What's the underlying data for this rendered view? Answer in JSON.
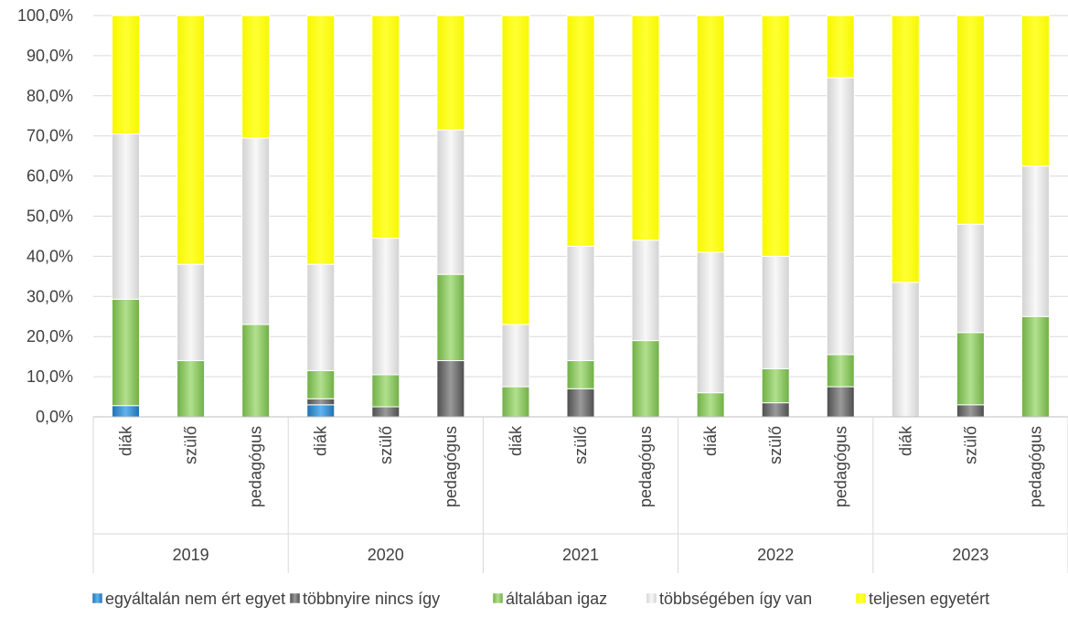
{
  "chart_data": {
    "type": "bar",
    "stacked": true,
    "percent": true,
    "ylim": [
      0,
      100
    ],
    "y_ticks": [
      "0,0%",
      "10,0%",
      "20,0%",
      "30,0%",
      "40,0%",
      "50,0%",
      "60,0%",
      "70,0%",
      "80,0%",
      "90,0%",
      "100,0%"
    ],
    "groups": [
      "2019",
      "2020",
      "2021",
      "2022",
      "2023"
    ],
    "categories": [
      {
        "group": "2019",
        "label": "diák"
      },
      {
        "group": "2019",
        "label": "szülő"
      },
      {
        "group": "2019",
        "label": "pedagógus"
      },
      {
        "group": "2020",
        "label": "diák"
      },
      {
        "group": "2020",
        "label": "szülő"
      },
      {
        "group": "2020",
        "label": "pedagógus"
      },
      {
        "group": "2021",
        "label": "diák"
      },
      {
        "group": "2021",
        "label": "szülő"
      },
      {
        "group": "2021",
        "label": "pedagógus"
      },
      {
        "group": "2022",
        "label": "diák"
      },
      {
        "group": "2022",
        "label": "szülő"
      },
      {
        "group": "2022",
        "label": "pedagógus"
      },
      {
        "group": "2023",
        "label": "diák"
      },
      {
        "group": "2023",
        "label": "szülő"
      },
      {
        "group": "2023",
        "label": "pedagógus"
      }
    ],
    "series": [
      {
        "name": "egyáltalán nem ért egyet",
        "color": "#2e8fd6",
        "values": [
          2.8,
          0,
          0,
          3.0,
          0,
          0,
          0,
          0,
          0,
          0,
          0,
          0,
          0,
          0,
          0
        ]
      },
      {
        "name": "többnyire nincs így",
        "color": "#777777",
        "values": [
          0,
          0,
          0,
          1.5,
          2.5,
          14.0,
          0,
          7.0,
          0,
          0,
          3.5,
          7.5,
          0,
          3.0,
          0
        ]
      },
      {
        "name": "általában igaz",
        "color": "#92cd6e",
        "values": [
          26.5,
          14.0,
          23.0,
          7.0,
          8.0,
          21.5,
          7.5,
          7.0,
          19.0,
          6.0,
          8.5,
          8.0,
          0,
          18.0,
          25.0
        ]
      },
      {
        "name": "többségében így van",
        "color": "#e6e6e6",
        "values": [
          41.2,
          24.0,
          46.5,
          26.5,
          34.0,
          36.0,
          15.5,
          28.5,
          25.0,
          35.0,
          28.0,
          69.0,
          33.5,
          27.0,
          37.5
        ]
      },
      {
        "name": "teljesen egyetért",
        "color": "#ffff00",
        "values": [
          29.5,
          62.0,
          30.5,
          62.0,
          55.5,
          28.5,
          77.0,
          57.5,
          56.0,
          59.0,
          60.0,
          15.5,
          66.5,
          52.0,
          37.5
        ]
      }
    ],
    "legend_position": "bottom",
    "grid": true
  }
}
